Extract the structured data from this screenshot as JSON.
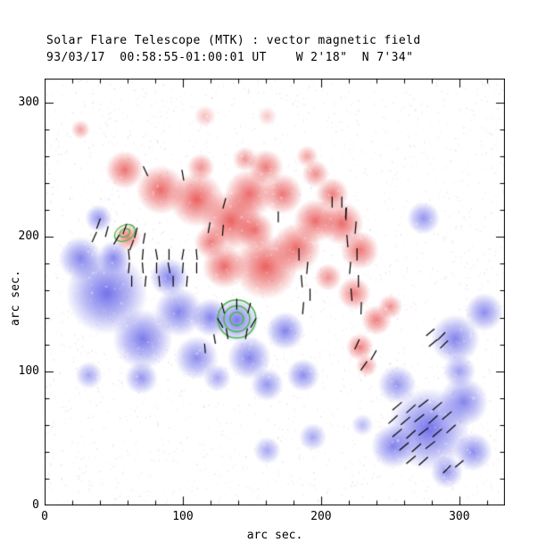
{
  "chart_data": {
    "type": "heatmap",
    "title": "Solar Flare Telescope (MTK) : vector magnetic field",
    "subtitle": "93/03/17  00:58:55-01:00:01 UT    W 2'18\"  N 7'34\"",
    "xlabel": "arc sec.",
    "ylabel": "arc sec.",
    "xlim": [
      0,
      333
    ],
    "ylim": [
      0,
      318
    ],
    "x_ticks": [
      0,
      100,
      200,
      300
    ],
    "y_ticks": [
      0,
      100,
      200,
      300
    ],
    "tick_minor_step": 20,
    "colors": {
      "positive_polarity": "#e84646",
      "negative_polarity": "#5050e6",
      "contour": "#44b944",
      "vector": "#000000",
      "background": "#ffffff"
    },
    "blobs": [
      [
        1,
        58,
        250,
        14,
        0.75
      ],
      [
        1,
        84,
        235,
        18,
        0.8
      ],
      [
        1,
        110,
        228,
        20,
        0.85
      ],
      [
        1,
        135,
        212,
        22,
        0.85
      ],
      [
        1,
        148,
        232,
        18,
        0.8
      ],
      [
        1,
        160,
        178,
        24,
        0.85
      ],
      [
        1,
        172,
        232,
        15,
        0.75
      ],
      [
        1,
        182,
        192,
        18,
        0.8
      ],
      [
        1,
        196,
        212,
        16,
        0.8
      ],
      [
        1,
        160,
        252,
        13,
        0.7
      ],
      [
        1,
        113,
        252,
        10,
        0.6
      ],
      [
        1,
        215,
        210,
        16,
        0.8
      ],
      [
        1,
        228,
        190,
        14,
        0.75
      ],
      [
        1,
        224,
        158,
        12,
        0.7
      ],
      [
        1,
        228,
        118,
        10,
        0.7
      ],
      [
        1,
        240,
        138,
        11,
        0.7
      ],
      [
        1,
        130,
        178,
        16,
        0.8
      ],
      [
        1,
        26,
        280,
        7,
        0.5
      ],
      [
        1,
        196,
        247,
        10,
        0.6
      ],
      [
        1,
        205,
        170,
        10,
        0.6
      ],
      [
        1,
        120,
        196,
        12,
        0.7
      ],
      [
        1,
        145,
        258,
        9,
        0.55
      ],
      [
        1,
        190,
        260,
        8,
        0.5
      ],
      [
        1,
        208,
        232,
        12,
        0.7
      ],
      [
        1,
        152,
        205,
        14,
        0.75
      ],
      [
        1,
        250,
        148,
        9,
        0.6
      ],
      [
        1,
        116,
        290,
        8,
        0.35
      ],
      [
        1,
        161,
        290,
        7,
        0.3
      ],
      [
        1,
        60,
        200,
        10,
        0.7
      ],
      [
        1,
        233,
        104,
        8,
        0.55
      ],
      [
        -1,
        45,
        158,
        30,
        0.8
      ],
      [
        -1,
        26,
        184,
        16,
        0.7
      ],
      [
        -1,
        71,
        124,
        22,
        0.75
      ],
      [
        -1,
        97,
        144,
        18,
        0.7
      ],
      [
        -1,
        110,
        110,
        16,
        0.65
      ],
      [
        -1,
        148,
        110,
        16,
        0.7
      ],
      [
        -1,
        174,
        130,
        14,
        0.7
      ],
      [
        -1,
        187,
        97,
        12,
        0.65
      ],
      [
        -1,
        161,
        90,
        12,
        0.6
      ],
      [
        -1,
        278,
        57,
        30,
        0.8
      ],
      [
        -1,
        303,
        77,
        18,
        0.7
      ],
      [
        -1,
        252,
        44,
        16,
        0.7
      ],
      [
        -1,
        297,
        124,
        18,
        0.7
      ],
      [
        -1,
        318,
        144,
        14,
        0.65
      ],
      [
        -1,
        274,
        214,
        12,
        0.6
      ],
      [
        -1,
        161,
        41,
        10,
        0.5
      ],
      [
        -1,
        194,
        51,
        10,
        0.5
      ],
      [
        -1,
        32,
        97,
        10,
        0.5
      ],
      [
        -1,
        50,
        185,
        12,
        0.65
      ],
      [
        -1,
        139,
        138,
        16,
        0.75
      ],
      [
        -1,
        120,
        140,
        14,
        0.7
      ],
      [
        -1,
        255,
        90,
        14,
        0.6
      ],
      [
        -1,
        310,
        40,
        14,
        0.65
      ],
      [
        -1,
        230,
        60,
        8,
        0.4
      ],
      [
        -1,
        39,
        214,
        10,
        0.6
      ],
      [
        -1,
        90,
        170,
        14,
        0.7
      ],
      [
        -1,
        70,
        95,
        12,
        0.6
      ],
      [
        -1,
        125,
        95,
        10,
        0.5
      ],
      [
        -1,
        291,
        25,
        12,
        0.6
      ],
      [
        -1,
        300,
        100,
        12,
        0.55
      ]
    ],
    "contours": [
      {
        "x": 139,
        "y": 139,
        "radii": [
          14,
          9.5,
          5
        ],
        "squash": 1,
        "rot": 0
      },
      {
        "x": 58,
        "y": 203,
        "radii": [
          8,
          4
        ],
        "squash": 0.7,
        "rot": -30
      }
    ],
    "vectors": [
      [
        73,
        249,
        115,
        8
      ],
      [
        100,
        246,
        100,
        8
      ],
      [
        130,
        225,
        75,
        8
      ],
      [
        169,
        215,
        90,
        8
      ],
      [
        208,
        226,
        90,
        8
      ],
      [
        215,
        226,
        90,
        8
      ],
      [
        218,
        218,
        85,
        8
      ],
      [
        39,
        210,
        70,
        8
      ],
      [
        45,
        204,
        75,
        8
      ],
      [
        36,
        200,
        65,
        8
      ],
      [
        58,
        206,
        70,
        8
      ],
      [
        66,
        203,
        75,
        8
      ],
      [
        72,
        199,
        80,
        8
      ],
      [
        63,
        194,
        70,
        8
      ],
      [
        52,
        198,
        60,
        8
      ],
      [
        61,
        187,
        95,
        8
      ],
      [
        71,
        187,
        85,
        8
      ],
      [
        81,
        187,
        100,
        8
      ],
      [
        90,
        187,
        90,
        8
      ],
      [
        100,
        187,
        80,
        8
      ],
      [
        110,
        187,
        95,
        8
      ],
      [
        61,
        177,
        85,
        8
      ],
      [
        71,
        177,
        95,
        8
      ],
      [
        81,
        177,
        90,
        8
      ],
      [
        90,
        177,
        100,
        8
      ],
      [
        100,
        177,
        85,
        8
      ],
      [
        110,
        177,
        90,
        8
      ],
      [
        63,
        167,
        90,
        8
      ],
      [
        73,
        167,
        85,
        8
      ],
      [
        83,
        167,
        95,
        8
      ],
      [
        93,
        167,
        90,
        8
      ],
      [
        103,
        167,
        85,
        8
      ],
      [
        119,
        207,
        80,
        8
      ],
      [
        129,
        205,
        85,
        8
      ],
      [
        184,
        187,
        90,
        9
      ],
      [
        190,
        177,
        85,
        9
      ],
      [
        186,
        167,
        95,
        9
      ],
      [
        192,
        157,
        90,
        9
      ],
      [
        187,
        147,
        85,
        9
      ],
      [
        218,
        217,
        90,
        9
      ],
      [
        225,
        207,
        85,
        9
      ],
      [
        219,
        197,
        95,
        9
      ],
      [
        226,
        187,
        90,
        9
      ],
      [
        221,
        177,
        85,
        9
      ],
      [
        227,
        167,
        90,
        9
      ],
      [
        222,
        157,
        95,
        9
      ],
      [
        229,
        147,
        88,
        9
      ],
      [
        129,
        147,
        105,
        8
      ],
      [
        139,
        150,
        90,
        8
      ],
      [
        148,
        147,
        75,
        8
      ],
      [
        127,
        136,
        120,
        8
      ],
      [
        151,
        136,
        60,
        8
      ],
      [
        132,
        128,
        100,
        8
      ],
      [
        146,
        128,
        80,
        8
      ],
      [
        123,
        124,
        100,
        7
      ],
      [
        116,
        117,
        95,
        7
      ],
      [
        238,
        112,
        60,
        8
      ],
      [
        231,
        104,
        55,
        8
      ],
      [
        226,
        120,
        65,
        8
      ],
      [
        279,
        129,
        40,
        8
      ],
      [
        287,
        126,
        45,
        8
      ],
      [
        281,
        121,
        40,
        8
      ],
      [
        289,
        120,
        45,
        8
      ],
      [
        255,
        74,
        40,
        9
      ],
      [
        265,
        72,
        42,
        9
      ],
      [
        274,
        76,
        38,
        9
      ],
      [
        284,
        74,
        40,
        9
      ],
      [
        252,
        64,
        42,
        9
      ],
      [
        261,
        63,
        40,
        9
      ],
      [
        271,
        65,
        38,
        9
      ],
      [
        281,
        64,
        42,
        9
      ],
      [
        291,
        67,
        40,
        9
      ],
      [
        255,
        54,
        40,
        9
      ],
      [
        265,
        53,
        42,
        9
      ],
      [
        274,
        55,
        38,
        9
      ],
      [
        284,
        54,
        40,
        9
      ],
      [
        294,
        57,
        42,
        9
      ],
      [
        260,
        44,
        40,
        9
      ],
      [
        269,
        43,
        42,
        9
      ],
      [
        279,
        45,
        38,
        9
      ],
      [
        265,
        34,
        40,
        9
      ],
      [
        274,
        33,
        42,
        9
      ],
      [
        291,
        27,
        45,
        8
      ],
      [
        300,
        31,
        40,
        8
      ]
    ]
  }
}
